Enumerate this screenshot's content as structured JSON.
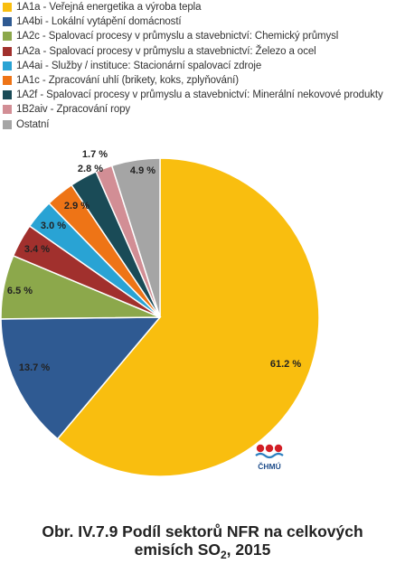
{
  "chart_data": {
    "type": "pie",
    "categories": [
      "1A1a - Veřejná energetika a výroba tepla",
      "1A4bi - Lokální vytápění domácností",
      "1A2c - Spalovací procesy v průmyslu a stavebnictví: Chemický průmysl",
      "1A2a - Spalovací procesy v průmyslu a stavebnictví: Železo a ocel",
      "1A4ai - Služby / instituce: Stacionární spalovací zdroje",
      "1A1c - Zpracování uhlí (brikety, koks, zplyňování)",
      "1A2f - Spalovací procesy v průmyslu a stavebnictví: Minerální nekovové produkty",
      "1B2aiv - Zpracování ropy",
      "Ostatní"
    ],
    "values": [
      61.2,
      13.7,
      6.5,
      3.4,
      3.0,
      2.9,
      2.8,
      1.7,
      4.9
    ],
    "data_labels": [
      "61.2 %",
      "13.7 %",
      "6.5 %",
      "3.4 %",
      "3.0 %",
      "2.9 %",
      "2.8 %",
      "1.7 %",
      "4.9 %"
    ],
    "colors": [
      "#F9BE0F",
      "#2F5A92",
      "#8CA84B",
      "#A1302D",
      "#29A3D4",
      "#EE7416",
      "#1A4B57",
      "#D28E95",
      "#A5A5A5"
    ],
    "legend_position": "top-left",
    "start_angle_deg": 0,
    "direction": "clockwise"
  },
  "caption": {
    "line1": "Obr. IV.7.9  Podíl sektorů NFR na celkových",
    "line2_main": "emisích SO",
    "line2_sub": "2",
    "line2_end": ", 2015"
  },
  "logo": {
    "text": "ČHMÚ"
  }
}
